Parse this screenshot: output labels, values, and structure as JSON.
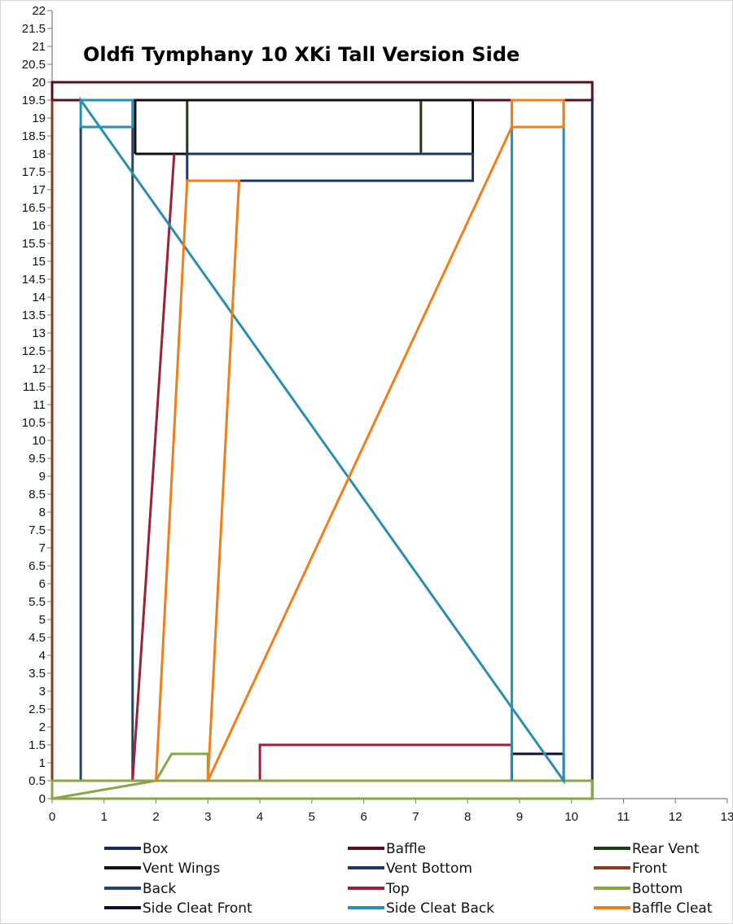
{
  "chart_data": {
    "type": "line",
    "title": "Oldfi  Tymphany 10 XKi Tall Version Side",
    "xlabel": "",
    "ylabel": "",
    "xlim": [
      0,
      13
    ],
    "ylim": [
      0,
      22
    ],
    "x_ticks": [
      "0",
      "1",
      "2",
      "3",
      "4",
      "5",
      "6",
      "7",
      "8",
      "9",
      "10",
      "11",
      "12",
      "13"
    ],
    "y_ticks": [
      "0",
      "0.5",
      "1",
      "1.5",
      "2",
      "2.5",
      "3",
      "3.5",
      "4",
      "4.5",
      "5",
      "5.5",
      "6",
      "6.5",
      "7",
      "7.5",
      "8",
      "8.5",
      "9",
      "9.5",
      "10",
      "10.5",
      "11",
      "11.5",
      "12",
      "12.5",
      "13",
      "13.5",
      "14",
      "14.5",
      "15",
      "15.5",
      "16",
      "16.5",
      "17",
      "17.5",
      "18",
      "18.5",
      "19",
      "19.5",
      "20",
      "20.5",
      "21",
      "21.5",
      "22"
    ],
    "grid": false,
    "legend_position": "bottom",
    "series": [
      {
        "name": "Box",
        "color": "#1f2a5c",
        "points": [
          [
            0,
            0
          ],
          [
            10.4,
            0
          ],
          [
            10.4,
            19.5
          ],
          [
            0,
            19.5
          ],
          [
            0,
            0
          ]
        ]
      },
      {
        "name": "Baffle",
        "color": "#5a0f1e",
        "points": [
          [
            0,
            19.5
          ],
          [
            10.4,
            19.5
          ],
          [
            10.4,
            20
          ],
          [
            0,
            20
          ],
          [
            0,
            19.5
          ]
        ]
      },
      {
        "name": "Rear Vent",
        "color": "#1e3d17",
        "points": [
          [
            2.6,
            18
          ],
          [
            2.6,
            19.5
          ],
          [
            7.1,
            19.5
          ],
          [
            7.1,
            18
          ]
        ]
      },
      {
        "name": "Vent Wings",
        "color": "#101010",
        "points": [
          [
            1.6,
            18
          ],
          [
            1.6,
            19.5
          ],
          [
            8.1,
            19.5
          ],
          [
            8.1,
            18
          ],
          [
            1.6,
            18
          ]
        ]
      },
      {
        "name": "Vent Bottom",
        "color": "#1c3766",
        "points": [
          [
            2.6,
            17.25
          ],
          [
            8.1,
            17.25
          ],
          [
            8.1,
            18
          ],
          [
            2.6,
            18
          ],
          [
            2.6,
            17.25
          ]
        ]
      },
      {
        "name": "Front",
        "color": "#8a3a1a",
        "points": [
          [
            0,
            0
          ],
          [
            0,
            19.5
          ]
        ]
      },
      {
        "name": "Back",
        "color": "#26436b",
        "points": [
          [
            0.55,
            0.5
          ],
          [
            0.55,
            18.75
          ],
          [
            1.55,
            18.75
          ],
          [
            1.55,
            0.5
          ]
        ]
      },
      {
        "name": "Top",
        "color": "#98233a",
        "points": [
          [
            1.55,
            0.5
          ],
          [
            2.35,
            18
          ],
          [
            1.55,
            0.5
          ],
          [
            4,
            0.5
          ],
          [
            4,
            1.5
          ],
          [
            8.85,
            1.5
          ],
          [
            8.85,
            0.5
          ]
        ]
      },
      {
        "name": "Bottom",
        "color": "#8aa545",
        "points": [
          [
            0,
            0
          ],
          [
            10.4,
            0
          ],
          [
            10.4,
            0.5
          ],
          [
            0,
            0.5
          ],
          [
            0,
            0
          ],
          [
            2,
            0.5
          ],
          [
            2.3,
            1.25
          ],
          [
            3,
            1.25
          ],
          [
            3,
            0.5
          ]
        ]
      },
      {
        "name": "Side Cleat Front",
        "color": "#120d2c",
        "points": [
          [
            8.85,
            0.5
          ],
          [
            8.85,
            1.25
          ],
          [
            9.85,
            1.25
          ],
          [
            9.85,
            0.5
          ]
        ]
      },
      {
        "name": "Side Cleat Back",
        "color": "#2a8db5",
        "points": [
          [
            8.85,
            0.5
          ],
          [
            8.85,
            19.5
          ],
          [
            9.85,
            19.5
          ],
          [
            9.85,
            0.5
          ],
          [
            0.55,
            19.5
          ],
          [
            0.55,
            18.75
          ],
          [
            1.55,
            18.75
          ],
          [
            1.55,
            19.5
          ],
          [
            0.55,
            19.5
          ]
        ]
      },
      {
        "name": "Baffle Cleat",
        "color": "#f07e1a",
        "points": [
          [
            2,
            0.5
          ],
          [
            2.6,
            17.25
          ],
          [
            3.6,
            17.25
          ],
          [
            3,
            0.5
          ],
          [
            8.85,
            18.75
          ],
          [
            8.85,
            19.5
          ],
          [
            9.85,
            19.5
          ],
          [
            9.85,
            18.75
          ],
          [
            8.85,
            18.75
          ]
        ]
      }
    ]
  }
}
